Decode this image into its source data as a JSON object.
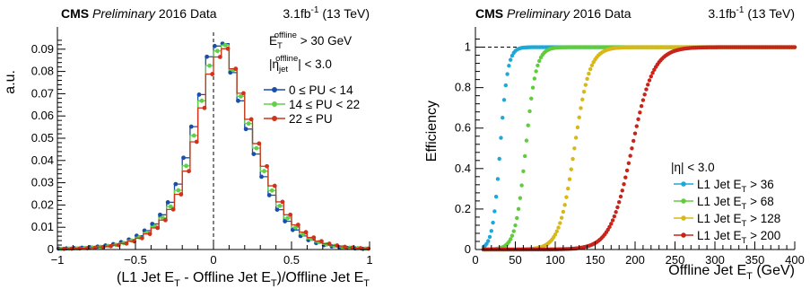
{
  "colors": {
    "blue": "#1a4fa8",
    "green": "#5fd048",
    "red": "#d0321a",
    "cyan": "#1ea8d8",
    "lime": "#60cc3c",
    "gold": "#d8b816",
    "darkred": "#c8241a"
  },
  "chart_data": [
    {
      "type": "histogram",
      "header": {
        "cms": "CMS",
        "preliminary": "Preliminary",
        "dataset": "2016 Data",
        "lumi_main": "3.1fb",
        "lumi_sup": "-1",
        "energy": "(13 TeV)"
      },
      "cuts": [
        {
          "main": "E",
          "sub": "T",
          "sup": "offline",
          "rest": "> 30 GeV"
        },
        {
          "main": "|η",
          "sub": "jet",
          "sup": "offline",
          "rest": "| < 3.0"
        }
      ],
      "ylabel": "a.u.",
      "xlabel_parts": [
        {
          "t": "(L1 Jet E",
          "s": ""
        },
        {
          "t": "T",
          "s": "sub"
        },
        {
          "t": " - Offline Jet E",
          "s": ""
        },
        {
          "t": "T",
          "s": "sub"
        },
        {
          "t": ")/Offline Jet E",
          "s": ""
        },
        {
          "t": "T",
          "s": "sub"
        }
      ],
      "xlim": [
        -1,
        1
      ],
      "ylim": [
        0,
        0.1
      ],
      "xticks": [
        "−1",
        "−0.5",
        "0",
        "0.5",
        "1"
      ],
      "xtick_values": [
        -1,
        -0.5,
        0,
        0.5,
        1
      ],
      "yticks": [
        "0",
        "0.01",
        "0.02",
        "0.03",
        "0.04",
        "0.05",
        "0.06",
        "0.07",
        "0.08",
        "0.09"
      ],
      "ytick_values": [
        0,
        0.01,
        0.02,
        0.03,
        0.04,
        0.05,
        0.06,
        0.07,
        0.08,
        0.09
      ],
      "bin_edges": [
        -1.0,
        -0.95,
        -0.9,
        -0.85,
        -0.8,
        -0.75,
        -0.7,
        -0.65,
        -0.6,
        -0.55,
        -0.5,
        -0.45,
        -0.4,
        -0.35,
        -0.3,
        -0.25,
        -0.2,
        -0.15,
        -0.1,
        -0.05,
        0.0,
        0.05,
        0.1,
        0.15,
        0.2,
        0.25,
        0.3,
        0.35,
        0.4,
        0.45,
        0.5,
        0.55,
        0.6,
        0.65,
        0.7,
        0.75,
        0.8,
        0.85,
        0.9,
        0.95,
        1.0
      ],
      "series": [
        {
          "name": "0 ≤ PU < 14",
          "color": "#1a4fa8",
          "values": [
            0.0004,
            0.0005,
            0.0006,
            0.0008,
            0.001,
            0.0013,
            0.0018,
            0.0024,
            0.0033,
            0.0045,
            0.0062,
            0.0085,
            0.0115,
            0.0156,
            0.0212,
            0.0294,
            0.0412,
            0.0552,
            0.0696,
            0.0866,
            0.0914,
            0.0925,
            0.0795,
            0.0668,
            0.0541,
            0.0429,
            0.0327,
            0.0244,
            0.0179,
            0.0127,
            0.0088,
            0.0061,
            0.0042,
            0.0029,
            0.002,
            0.0014,
            0.001,
            0.0007,
            0.0005,
            0.0003
          ]
        },
        {
          "name": "14 ≤ PU < 22",
          "color": "#5fd048",
          "values": [
            0.0003,
            0.0004,
            0.0005,
            0.0007,
            0.0009,
            0.0012,
            0.0016,
            0.0021,
            0.0029,
            0.004,
            0.0055,
            0.0076,
            0.0104,
            0.0142,
            0.0193,
            0.0266,
            0.0376,
            0.0512,
            0.0668,
            0.0826,
            0.0892,
            0.0918,
            0.0806,
            0.0688,
            0.0566,
            0.0455,
            0.0352,
            0.0265,
            0.0196,
            0.0141,
            0.0099,
            0.0069,
            0.0048,
            0.0033,
            0.0023,
            0.0016,
            0.0011,
            0.0008,
            0.0006,
            0.0004
          ]
        },
        {
          "name": "22 ≤ PU",
          "color": "#d0321a",
          "values": [
            0.0003,
            0.0004,
            0.0005,
            0.0006,
            0.0008,
            0.0011,
            0.0015,
            0.002,
            0.0027,
            0.0037,
            0.0051,
            0.007,
            0.0097,
            0.0132,
            0.018,
            0.0248,
            0.0352,
            0.0484,
            0.0636,
            0.0788,
            0.0865,
            0.0902,
            0.0812,
            0.0702,
            0.0585,
            0.0476,
            0.0374,
            0.0286,
            0.0214,
            0.0156,
            0.0111,
            0.0078,
            0.0054,
            0.0037,
            0.0026,
            0.0018,
            0.0012,
            0.0009,
            0.0006,
            0.0004
          ]
        }
      ]
    },
    {
      "type": "scatter",
      "header": {
        "cms": "CMS",
        "preliminary": "Preliminary",
        "dataset": "2016 Data",
        "lumi_main": "3.1fb",
        "lumi_sup": "-1",
        "energy": "(13 TeV)"
      },
      "ylabel": "Efficiency",
      "xlabel_parts": [
        {
          "t": "Offline Jet E",
          "s": ""
        },
        {
          "t": "T",
          "s": "sub"
        },
        {
          "t": " (GeV)",
          "s": ""
        }
      ],
      "xlim": [
        0,
        400
      ],
      "ylim": [
        0,
        1.1
      ],
      "xticks": [
        "0",
        "50",
        "100",
        "150",
        "200",
        "250",
        "300",
        "350",
        "400"
      ],
      "xtick_values": [
        0,
        50,
        100,
        150,
        200,
        250,
        300,
        350,
        400
      ],
      "yticks": [
        "0",
        "0.2",
        "0.4",
        "0.6",
        "0.8",
        "1"
      ],
      "ytick_values": [
        0,
        0.2,
        0.4,
        0.6,
        0.8,
        1.0
      ],
      "reference_line_y": 1.0,
      "legend_title": "|η| < 3.0",
      "x_range": [
        10,
        400
      ],
      "x_step": 2,
      "series": [
        {
          "name_main": "L1 Jet E",
          "name_sub": "T",
          "name_rest": "> 36",
          "color": "#1ea8d8",
          "threshold": 36,
          "midpoint": 31,
          "width": 4.8
        },
        {
          "name_main": "L1 Jet E",
          "name_sub": "T",
          "name_rest": "> 68",
          "color": "#60cc3c",
          "threshold": 68,
          "midpoint": 63,
          "width": 6.5
        },
        {
          "name_main": "L1 Jet E",
          "name_sub": "T",
          "name_rest": "> 128",
          "color": "#d8b816",
          "threshold": 128,
          "midpoint": 124,
          "width": 9.5
        },
        {
          "name_main": "L1 Jet E",
          "name_sub": "T",
          "name_rest": "> 200",
          "color": "#c8241a",
          "threshold": 200,
          "midpoint": 196,
          "width": 13.5
        }
      ]
    }
  ]
}
